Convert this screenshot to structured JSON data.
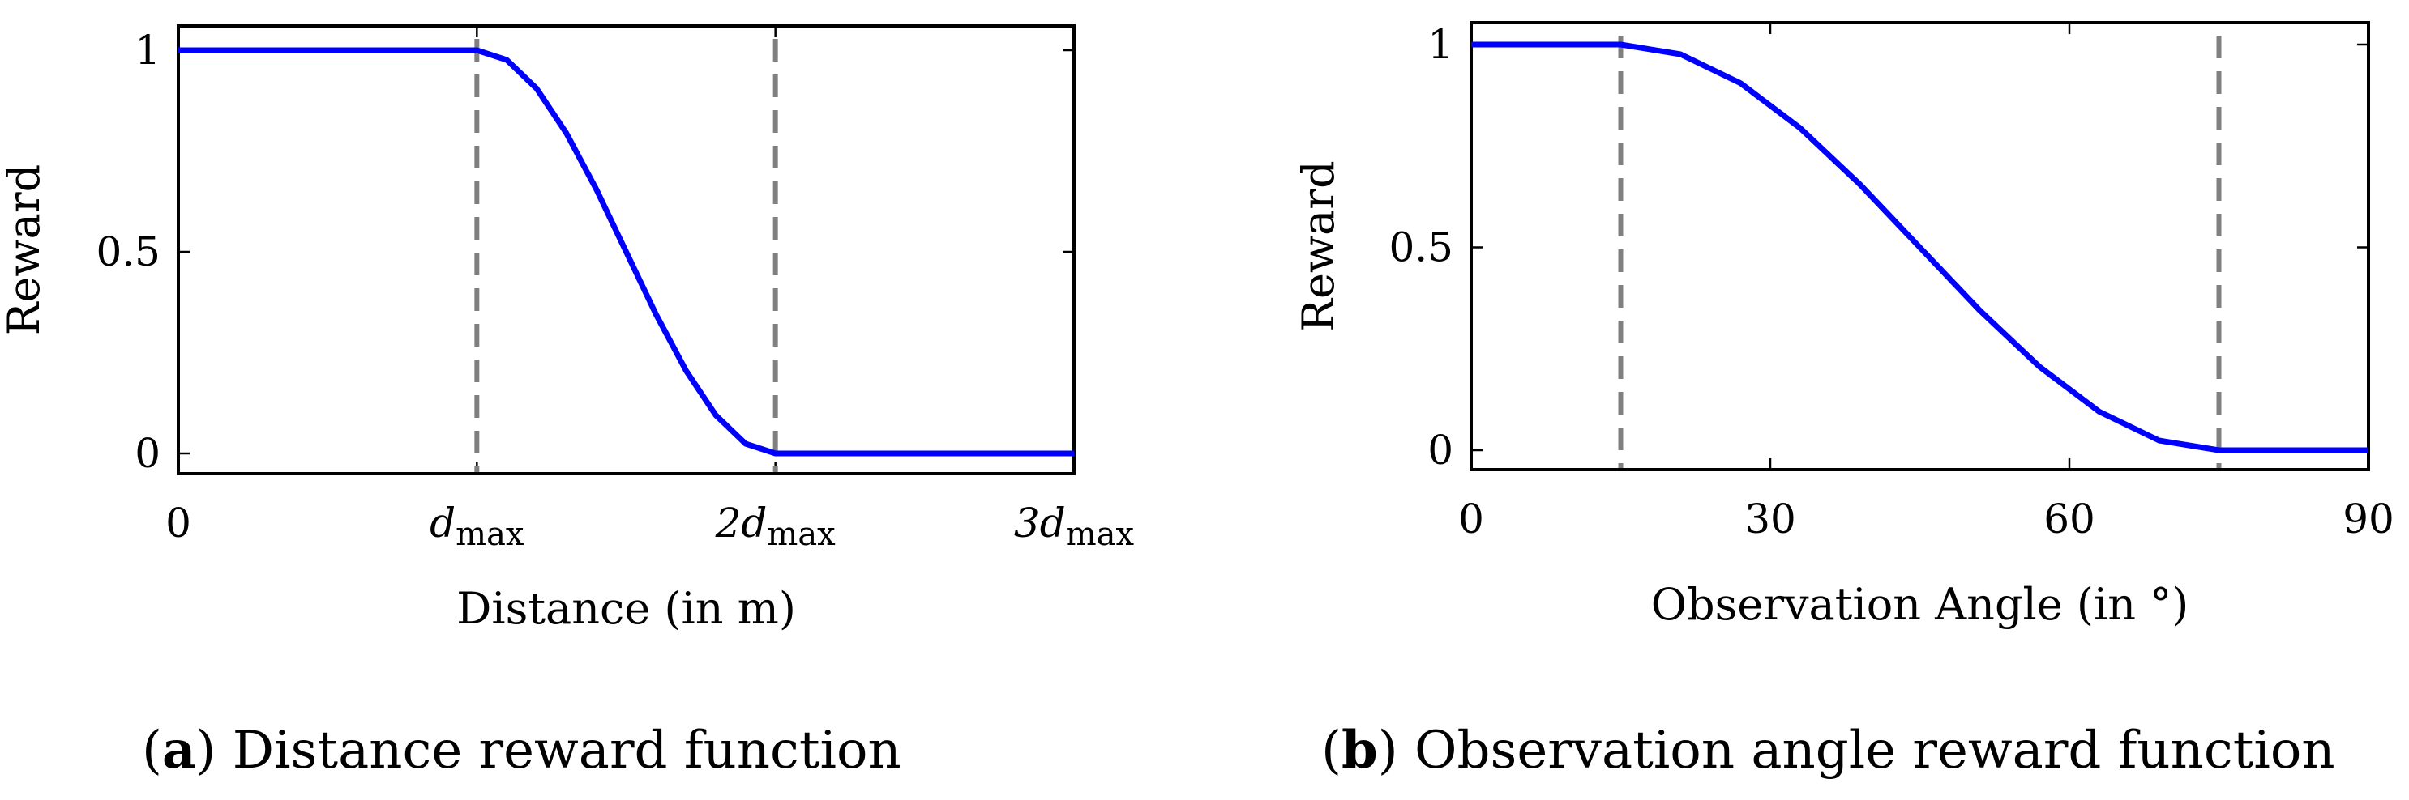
{
  "colors": {
    "curve": "#0000ff",
    "guide": "#808080",
    "axis": "#000000"
  },
  "chart_data": [
    {
      "type": "line",
      "id": "a",
      "caption_label": "a",
      "caption_text": " Distance reward function",
      "xlabel": "Distance (in m)",
      "ylabel": "Reward",
      "xlim": [
        0,
        3
      ],
      "ylim": [
        0,
        1
      ],
      "xticks": [
        {
          "value": 0,
          "base": "0",
          "sub": ""
        },
        {
          "value": 1,
          "base": "d",
          "sub": "max"
        },
        {
          "value": 2,
          "base": "2d",
          "sub": "max"
        },
        {
          "value": 3,
          "base": "3d",
          "sub": "max"
        }
      ],
      "yticks": [
        {
          "value": 0,
          "label": "0"
        },
        {
          "value": 0.5,
          "label": "0.5"
        },
        {
          "value": 1,
          "label": "1"
        }
      ],
      "series": [
        {
          "name": "reward",
          "color": "#0000ff",
          "x": [
            0,
            1,
            1.1,
            1.2,
            1.3,
            1.4,
            1.5,
            1.6,
            1.7,
            1.8,
            1.9,
            2,
            3
          ],
          "y": [
            1,
            1,
            0.976,
            0.905,
            0.794,
            0.655,
            0.5,
            0.345,
            0.206,
            0.095,
            0.024,
            0,
            0
          ]
        }
      ],
      "guides_x": [
        1,
        2
      ]
    },
    {
      "type": "line",
      "id": "b",
      "caption_label": "b",
      "caption_text": " Observation angle reward function",
      "xlabel": "Observation Angle (in °)",
      "ylabel": "Reward",
      "xlim": [
        0,
        90
      ],
      "ylim": [
        0,
        1
      ],
      "xticks": [
        {
          "value": 0,
          "base": "0",
          "sub": ""
        },
        {
          "value": 30,
          "base": "30",
          "sub": ""
        },
        {
          "value": 60,
          "base": "60",
          "sub": ""
        },
        {
          "value": 90,
          "base": "90",
          "sub": ""
        }
      ],
      "yticks": [
        {
          "value": 0,
          "label": "0"
        },
        {
          "value": 0.5,
          "label": "0.5"
        },
        {
          "value": 1,
          "label": "1"
        }
      ],
      "series": [
        {
          "name": "reward",
          "color": "#0000ff",
          "x": [
            0,
            15,
            21,
            27,
            33,
            39,
            45,
            51,
            57,
            63,
            69,
            75,
            90
          ],
          "y": [
            1,
            1,
            0.976,
            0.905,
            0.794,
            0.655,
            0.5,
            0.345,
            0.206,
            0.095,
            0.024,
            0,
            0
          ]
        }
      ],
      "guides_x": [
        15,
        75
      ]
    }
  ]
}
